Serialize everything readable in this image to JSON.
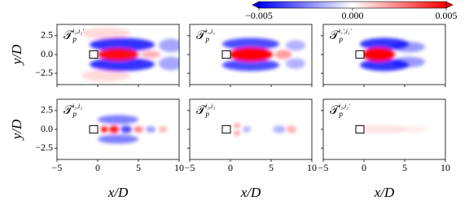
{
  "colorbar": {
    "clim": [
      -0.005,
      0.005
    ],
    "ticks": [
      {
        "value": -0.005,
        "label": "−0.005"
      },
      {
        "value": 0,
        "label": "0.000"
      },
      0.005
    ]
  },
  "axes": {
    "xlim": [
      -5,
      10
    ],
    "xticks": [
      {
        "value": -5,
        "label": "−5"
      },
      0,
      5,
      10
    ],
    "ylim": [
      -4,
      4
    ],
    "yticks": [
      {
        "value": -2.5,
        "label": "−2.5"
      },
      {
        "value": 0,
        "label": "0.0"
      },
      2.5
    ],
    "xlabel": "x/D",
    "ylabel": "y/D"
  },
  "chart_data": [
    {
      "type": "heatmap",
      "title": {
        "base": "𝒯",
        "sub": "p",
        "sup": "i₁,i₁′"
      }
    },
    {
      "type": "heatmap",
      "title": {
        "base": "𝒯",
        "sub": "p",
        "sup": "i₁,i₁"
      }
    },
    {
      "type": "heatmap",
      "title": {
        "base": "𝒯",
        "sub": "p",
        "sup": "i₁′,i₁′"
      }
    },
    {
      "type": "heatmap",
      "title": {
        "base": "𝒯",
        "sub": "p",
        "sup": "i₂,i₂"
      }
    },
    {
      "type": "heatmap",
      "title": {
        "base": "𝒯",
        "sub": "p",
        "sup": "i₃,i₃"
      }
    },
    {
      "type": "heatmap",
      "title": {
        "base": "𝒯",
        "sub": "p",
        "sup": "i₂,i₂′"
      }
    }
  ]
}
